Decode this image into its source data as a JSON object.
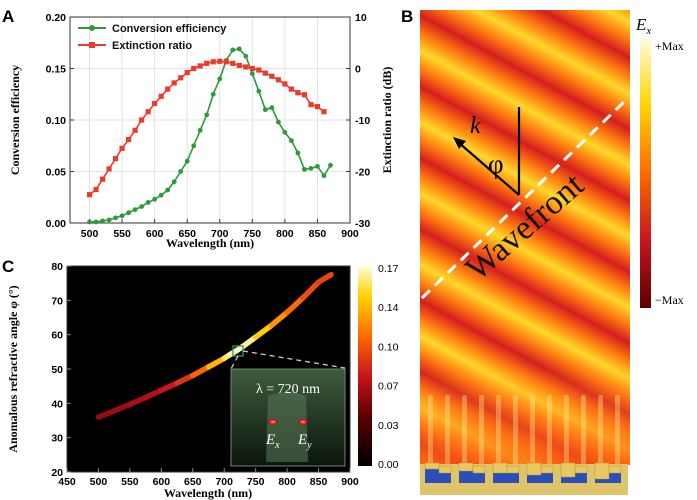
{
  "panels": {
    "a": "A",
    "b": "B",
    "c": "C"
  },
  "panel_b": {
    "field_label": "E",
    "field_sub": "x",
    "max_label": "+Max",
    "min_label": "−Max",
    "k_label": "k",
    "phi_label": "φ",
    "wavefront_label": "Wavefront",
    "colors": [
      "#5a0000",
      "#c8141e",
      "#ff6a00",
      "#ffd400",
      "#fffce0"
    ]
  },
  "panel_c": {
    "inset_lambda": "λ = 720 nm",
    "inset_ex": "E",
    "inset_ex_sub": "x",
    "inset_ey": "E",
    "inset_ey_sub": "y"
  },
  "chart_data": [
    {
      "type": "line",
      "panel": "A",
      "xlabel": "Wavelength (nm)",
      "ylabel": "Conversion efficiency",
      "y2label": "Extinction ratio (dB)",
      "xlim": [
        470,
        900
      ],
      "ylim": [
        0,
        0.2
      ],
      "y2lim": [
        -30,
        10
      ],
      "xticks": [
        500,
        550,
        600,
        650,
        700,
        750,
        800,
        850,
        900
      ],
      "yticks": [
        0.0,
        0.05,
        0.1,
        0.15,
        0.2
      ],
      "y2ticks": [
        -30,
        -20,
        -10,
        0,
        10
      ],
      "grid": true,
      "legend": "top-left",
      "series": [
        {
          "name": "Conversion efficiency",
          "axis": "left",
          "color": "#2e9b3a",
          "x": [
            500,
            510,
            520,
            530,
            540,
            550,
            560,
            570,
            580,
            590,
            600,
            610,
            620,
            630,
            640,
            650,
            660,
            670,
            680,
            690,
            700,
            710,
            720,
            730,
            740,
            750,
            760,
            770,
            780,
            790,
            800,
            810,
            820,
            830,
            840,
            850,
            860,
            870
          ],
          "y": [
            0.001,
            0.001,
            0.002,
            0.003,
            0.005,
            0.007,
            0.01,
            0.013,
            0.016,
            0.02,
            0.023,
            0.027,
            0.032,
            0.04,
            0.05,
            0.06,
            0.075,
            0.09,
            0.105,
            0.125,
            0.14,
            0.158,
            0.168,
            0.169,
            0.162,
            0.145,
            0.128,
            0.11,
            0.112,
            0.098,
            0.088,
            0.08,
            0.068,
            0.052,
            0.053,
            0.055,
            0.046,
            0.056
          ]
        },
        {
          "name": "Extinction ratio",
          "axis": "right",
          "color": "#ee3a2d",
          "x": [
            500,
            510,
            520,
            530,
            540,
            550,
            560,
            570,
            580,
            590,
            600,
            610,
            620,
            630,
            640,
            650,
            660,
            670,
            680,
            690,
            700,
            710,
            720,
            730,
            740,
            750,
            760,
            770,
            780,
            790,
            800,
            810,
            820,
            830,
            840,
            850,
            860
          ],
          "y": [
            -24.5,
            -23.5,
            -21.5,
            -19.5,
            -17.5,
            -15.5,
            -13.8,
            -12.0,
            -10.0,
            -8.4,
            -6.8,
            -5.4,
            -4.0,
            -2.8,
            -1.8,
            -0.8,
            0,
            0.5,
            1.0,
            1.3,
            1.4,
            1.3,
            1.0,
            0.6,
            0.3,
            0,
            -0.3,
            -0.9,
            -1.5,
            -2.2,
            -3.0,
            -4.0,
            -4.7,
            -5.1,
            -7.0,
            -7.4,
            -8.4
          ]
        }
      ]
    },
    {
      "type": "scatter",
      "panel": "C",
      "xlabel": "Wavelength (nm)",
      "ylabel": "Anomalous refractive angle φ (°)",
      "xlim": [
        450,
        900
      ],
      "ylim": [
        20,
        80
      ],
      "xticks": [
        450,
        500,
        550,
        600,
        650,
        700,
        750,
        800,
        850,
        900
      ],
      "yticks": [
        20,
        30,
        40,
        50,
        60,
        70,
        80
      ],
      "colorbar_ticks": [
        "0.17",
        "0.14",
        "0.10",
        "0.07",
        "0.03",
        "0.00"
      ],
      "colorbar_lim": [
        0,
        0.17
      ],
      "x": [
        500,
        525,
        550,
        575,
        600,
        625,
        650,
        675,
        700,
        710,
        720,
        730,
        750,
        775,
        800,
        825,
        850,
        870
      ],
      "y": [
        36.0,
        37.8,
        39.7,
        41.7,
        43.8,
        45.9,
        48.1,
        50.6,
        53.1,
        54.3,
        55.4,
        56.6,
        59.3,
        62.7,
        66.5,
        70.7,
        75.3,
        77.5
      ],
      "value": [
        0.001,
        0.005,
        0.007,
        0.013,
        0.02,
        0.032,
        0.06,
        0.09,
        0.14,
        0.158,
        0.168,
        0.169,
        0.145,
        0.11,
        0.088,
        0.068,
        0.055,
        0.056
      ]
    }
  ]
}
